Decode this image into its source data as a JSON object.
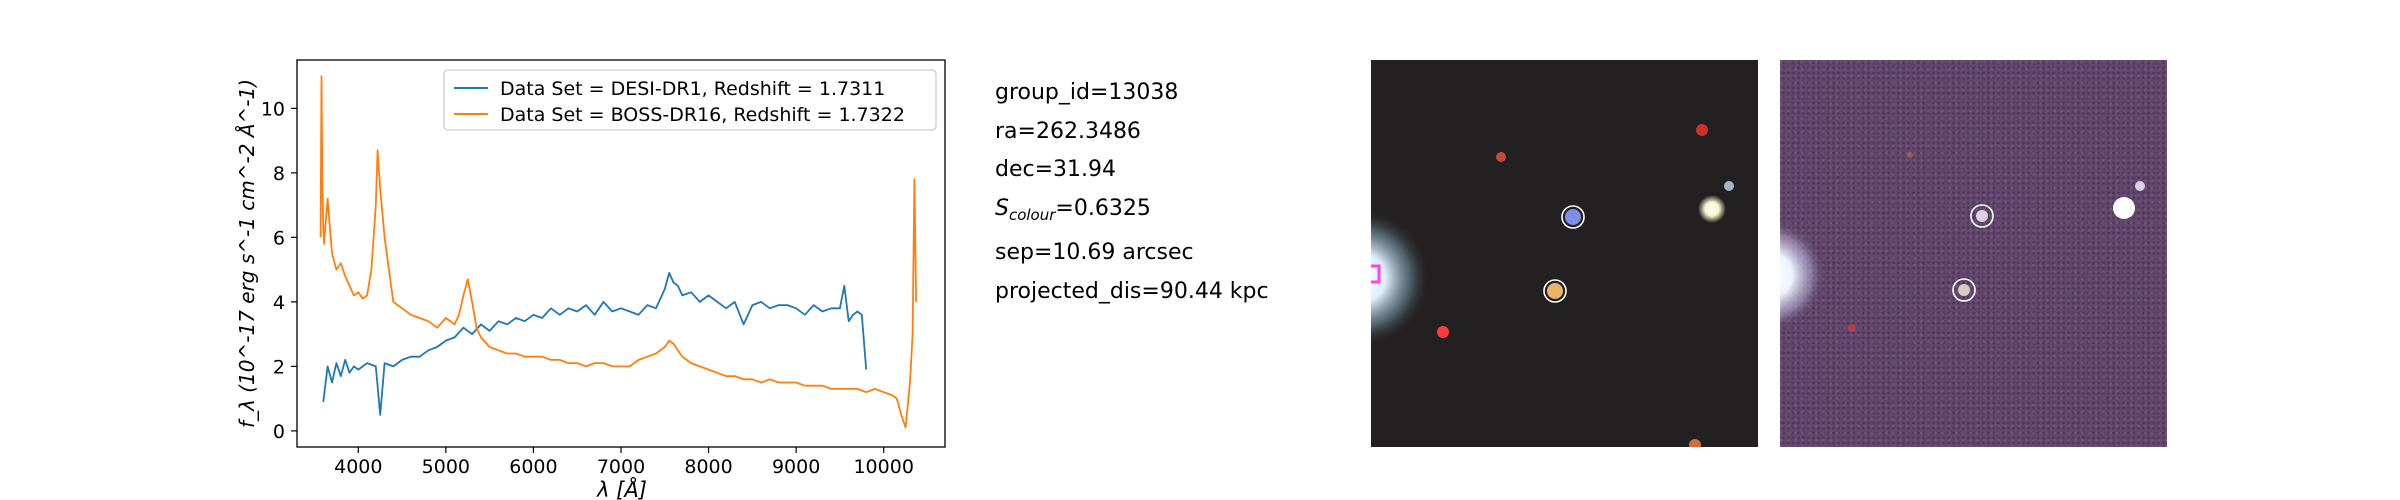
{
  "chart_data": {
    "type": "line",
    "xlabel": "λ [Å]",
    "ylabel": "f_λ (10^-17 erg s^-1 cm^-2 Å^-1)",
    "xlim": [
      3300,
      10700
    ],
    "ylim": [
      -0.5,
      11.5
    ],
    "xticks": [
      4000,
      5000,
      6000,
      7000,
      8000,
      9000,
      10000
    ],
    "yticks": [
      0,
      2,
      4,
      6,
      8,
      10
    ],
    "legend_position": "top-right",
    "series": [
      {
        "name": "Data Set = DESI-DR1, Redshift = 1.7311",
        "color": "#1f77b4",
        "x": [
          3600,
          3650,
          3700,
          3750,
          3800,
          3850,
          3900,
          3950,
          4000,
          4100,
          4200,
          4250,
          4300,
          4400,
          4500,
          4600,
          4700,
          4800,
          4900,
          5000,
          5100,
          5200,
          5300,
          5400,
          5500,
          5600,
          5700,
          5800,
          5900,
          6000,
          6100,
          6200,
          6300,
          6400,
          6500,
          6600,
          6700,
          6800,
          6900,
          7000,
          7100,
          7200,
          7300,
          7400,
          7500,
          7550,
          7600,
          7650,
          7700,
          7800,
          7900,
          8000,
          8100,
          8200,
          8300,
          8400,
          8500,
          8600,
          8700,
          8800,
          8900,
          9000,
          9100,
          9200,
          9300,
          9400,
          9500,
          9550,
          9600,
          9650,
          9700,
          9750,
          9800
        ],
        "y": [
          0.9,
          2.0,
          1.5,
          2.1,
          1.7,
          2.2,
          1.8,
          2.0,
          1.9,
          2.1,
          2.0,
          0.5,
          2.1,
          2.0,
          2.2,
          2.3,
          2.3,
          2.5,
          2.6,
          2.8,
          2.9,
          3.2,
          3.0,
          3.3,
          3.1,
          3.4,
          3.3,
          3.5,
          3.4,
          3.6,
          3.5,
          3.8,
          3.6,
          3.8,
          3.7,
          3.9,
          3.6,
          4.0,
          3.7,
          3.8,
          3.7,
          3.6,
          3.9,
          3.8,
          4.4,
          4.9,
          4.6,
          4.5,
          4.2,
          4.3,
          4.0,
          4.2,
          4.0,
          3.8,
          4.0,
          3.3,
          3.9,
          4.0,
          3.8,
          3.9,
          3.9,
          3.8,
          3.6,
          3.9,
          3.7,
          3.8,
          3.8,
          4.5,
          3.4,
          3.6,
          3.7,
          3.6,
          1.9
        ]
      },
      {
        "name": "Data Set = BOSS-DR16, Redshift = 1.7322",
        "color": "#ff7f0e",
        "x": [
          3570,
          3580,
          3590,
          3600,
          3610,
          3620,
          3650,
          3700,
          3750,
          3800,
          3850,
          3900,
          3950,
          4000,
          4050,
          4100,
          4150,
          4200,
          4220,
          4250,
          4300,
          4350,
          4400,
          4500,
          4600,
          4700,
          4800,
          4900,
          5000,
          5100,
          5150,
          5200,
          5250,
          5300,
          5350,
          5400,
          5500,
          5600,
          5700,
          5800,
          5900,
          6000,
          6100,
          6200,
          6300,
          6400,
          6500,
          6600,
          6700,
          6800,
          6900,
          7000,
          7100,
          7200,
          7300,
          7400,
          7500,
          7550,
          7600,
          7650,
          7700,
          7800,
          7900,
          8000,
          8100,
          8200,
          8300,
          8400,
          8500,
          8600,
          8700,
          8800,
          8900,
          9000,
          9100,
          9200,
          9300,
          9400,
          9500,
          9600,
          9700,
          9800,
          9900,
          10000,
          10100,
          10150,
          10200,
          10250,
          10300,
          10330,
          10350,
          10370
        ],
        "y": [
          6.0,
          11.0,
          7.5,
          6.3,
          5.8,
          6.2,
          7.2,
          5.5,
          5.0,
          5.2,
          4.8,
          4.5,
          4.2,
          4.3,
          4.1,
          4.2,
          5.0,
          7.0,
          8.7,
          7.5,
          6.0,
          5.0,
          4.0,
          3.8,
          3.6,
          3.5,
          3.4,
          3.2,
          3.5,
          3.3,
          3.6,
          4.2,
          4.7,
          4.0,
          3.2,
          2.9,
          2.6,
          2.5,
          2.4,
          2.4,
          2.3,
          2.3,
          2.3,
          2.2,
          2.2,
          2.1,
          2.1,
          2.0,
          2.1,
          2.1,
          2.0,
          2.0,
          2.0,
          2.2,
          2.3,
          2.4,
          2.6,
          2.8,
          2.7,
          2.5,
          2.3,
          2.1,
          2.0,
          1.9,
          1.8,
          1.7,
          1.7,
          1.6,
          1.6,
          1.5,
          1.6,
          1.5,
          1.5,
          1.5,
          1.4,
          1.4,
          1.4,
          1.3,
          1.3,
          1.3,
          1.3,
          1.2,
          1.3,
          1.2,
          1.1,
          1.0,
          0.5,
          0.1,
          1.5,
          3.0,
          7.8,
          4.0
        ]
      }
    ]
  },
  "info": {
    "group_id": "group_id=13038",
    "ra": "ra=262.3486",
    "dec": "dec=31.94",
    "s_colour_prefix": "S",
    "s_colour_sub": "colour",
    "s_colour_value": "=0.6325",
    "sep": "sep=10.69 arcsec",
    "projected_dis": "projected_dis=90.44 kpc"
  },
  "colors": {
    "legend_border": "#cccccc",
    "marker_circle": "#ffffff"
  }
}
